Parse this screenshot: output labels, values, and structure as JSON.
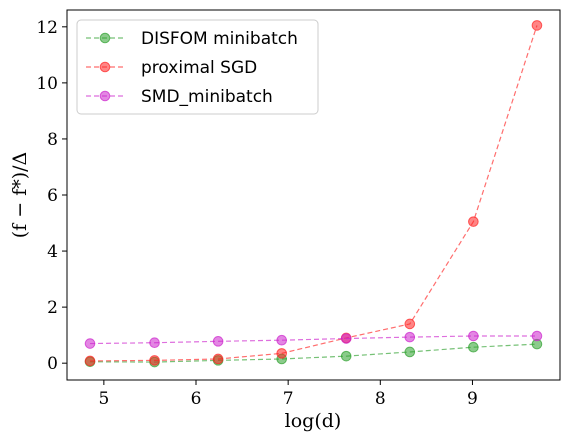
{
  "chart_data": {
    "type": "line",
    "xlabel": "log(d)",
    "ylabel": "(f − f*)/Δ",
    "xlim": [
      4.6,
      9.95
    ],
    "ylim": [
      -0.6,
      12.6
    ],
    "xticks": [
      {
        "value": 5,
        "label": "5"
      },
      {
        "value": 6,
        "label": "6"
      },
      {
        "value": 7,
        "label": "7"
      },
      {
        "value": 8,
        "label": "8"
      },
      {
        "value": 9,
        "label": "9"
      }
    ],
    "yticks": [
      {
        "value": 0,
        "label": "0"
      },
      {
        "value": 2,
        "label": "2"
      },
      {
        "value": 4,
        "label": "4"
      },
      {
        "value": 6,
        "label": "6"
      },
      {
        "value": 8,
        "label": "8"
      },
      {
        "value": 10,
        "label": "10"
      },
      {
        "value": 12,
        "label": "12"
      }
    ],
    "x": [
      4.85,
      5.55,
      6.24,
      6.93,
      7.63,
      8.32,
      9.01,
      9.7
    ],
    "legend_position": "top-left",
    "grid": false,
    "series": [
      {
        "name": "DISFOM minibatch",
        "color": "#2ca02c",
        "values": [
          0.05,
          0.04,
          0.1,
          0.15,
          0.25,
          0.4,
          0.57,
          0.68
        ]
      },
      {
        "name": "proximal SGD",
        "color": "#ff2020",
        "values": [
          0.08,
          0.1,
          0.15,
          0.35,
          0.9,
          1.4,
          5.05,
          12.05
        ]
      },
      {
        "name": "SMD_minibatch",
        "color": "#cc22cc",
        "values": [
          0.7,
          0.73,
          0.78,
          0.82,
          0.88,
          0.93,
          0.97,
          0.97
        ]
      }
    ]
  }
}
